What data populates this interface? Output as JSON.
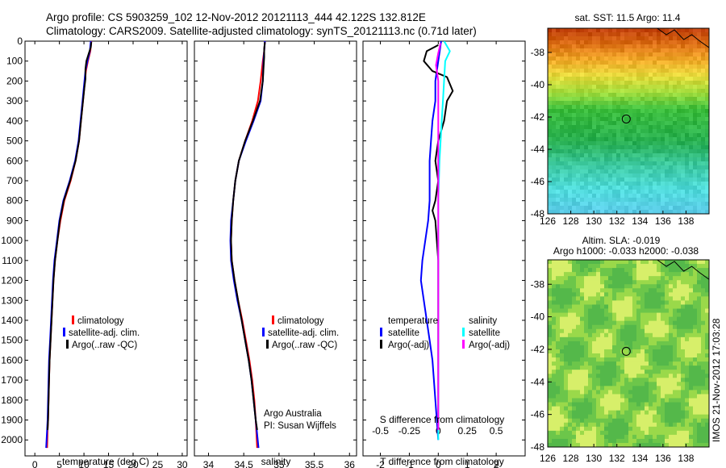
{
  "header": {
    "line1": "Argo profile: CS 5903259_102 12-Nov-2012 20121113_444 42.122S 132.812E",
    "line2": "Climatology: CARS2009. Satellite-adjusted climatology: synTS_20121113.nc (0.71d later)"
  },
  "colors": {
    "climatology": "#ff0000",
    "satellite": "#0000ff",
    "argo": "#000000",
    "sal_satellite": "#00ffff",
    "sal_argo": "#ff00ff"
  },
  "depth_ticks": [
    "0",
    "100",
    "200",
    "300",
    "400",
    "500",
    "600",
    "700",
    "800",
    "900",
    "1000",
    "1100",
    "1200",
    "1300",
    "1400",
    "1500",
    "1600",
    "1700",
    "1800",
    "1900",
    "2000"
  ],
  "panels": {
    "temp": {
      "xlabel": "temperature (deg C)",
      "xticks": [
        "0",
        "5",
        "10",
        "15",
        "20",
        "25",
        "30"
      ],
      "legend": [
        "climatology",
        "satellite-adj. clim.",
        "Argo(..raw -QC)"
      ]
    },
    "sal": {
      "xlabel": "salinity",
      "xticks": [
        "34",
        "34.5",
        "35",
        "35.5",
        "36"
      ],
      "legend": [
        "climatology",
        "satellite-adj. clim.",
        "Argo(..raw -QC)"
      ],
      "note1": "Argo Australia",
      "note2": "PI: Susan Wijffels"
    },
    "diff": {
      "xlabel": "T difference from climatology",
      "xticks": [
        "-2",
        "-1",
        "0",
        "1",
        "2"
      ],
      "top_label": "S difference from climatology",
      "top_ticks": [
        "-0.5",
        "-0.25",
        "0",
        "0.25",
        "0.5"
      ],
      "legend_t_title": "temperature",
      "legend_s_title": "salinity",
      "legend_items": [
        "satellite",
        "Argo(-adj)"
      ]
    }
  },
  "maps": {
    "sst_title": "sat. SST: 11.5  Argo: 11.4",
    "sla_title1": "Altim. SLA: -0.019",
    "sla_title2": "Argo h1000: -0.033 h2000: -0.038",
    "yticks": [
      "-38",
      "-40",
      "-42",
      "-44",
      "-46",
      "-48"
    ],
    "xticks": [
      "126",
      "128",
      "130",
      "132",
      "134",
      "136",
      "138"
    ],
    "footer": "IMOS 21-Nov-2012 17:03:28"
  },
  "chart_data": [
    {
      "type": "line",
      "title": "Argo profile: CS 5903259_102 12-Nov-2012 20121113_444 42.122S 132.812E",
      "xlabel": "temperature (deg C)",
      "ylabel": "",
      "xlim": [
        -2,
        31
      ],
      "ylim": [
        2080,
        0
      ],
      "series": [
        {
          "name": "climatology",
          "color": "#ff0000",
          "points": [
            [
              11.5,
              0
            ],
            [
              11.3,
              50
            ],
            [
              10.8,
              100
            ],
            [
              10.4,
              150
            ],
            [
              10.2,
              200
            ],
            [
              9.8,
              300
            ],
            [
              9.4,
              400
            ],
            [
              9.0,
              500
            ],
            [
              8.3,
              600
            ],
            [
              7.3,
              700
            ],
            [
              6.0,
              800
            ],
            [
              5.2,
              900
            ],
            [
              4.6,
              1000
            ],
            [
              4.1,
              1100
            ],
            [
              3.8,
              1200
            ],
            [
              3.6,
              1300
            ],
            [
              3.4,
              1400
            ],
            [
              3.2,
              1500
            ],
            [
              3.0,
              1600
            ],
            [
              2.9,
              1700
            ],
            [
              2.8,
              1800
            ],
            [
              2.7,
              1900
            ],
            [
              2.6,
              1950
            ],
            [
              2.5,
              2040
            ]
          ]
        },
        {
          "name": "satellite-adj. clim.",
          "color": "#0000ff",
          "points": [
            [
              11.4,
              0
            ],
            [
              11.2,
              50
            ],
            [
              10.7,
              100
            ],
            [
              10.3,
              150
            ],
            [
              10.1,
              200
            ],
            [
              9.7,
              300
            ],
            [
              9.3,
              400
            ],
            [
              8.9,
              500
            ],
            [
              8.2,
              600
            ],
            [
              7.1,
              700
            ],
            [
              5.8,
              800
            ],
            [
              5.0,
              900
            ],
            [
              4.5,
              1000
            ],
            [
              4.0,
              1100
            ],
            [
              3.7,
              1200
            ],
            [
              3.5,
              1300
            ],
            [
              3.3,
              1400
            ],
            [
              3.1,
              1500
            ],
            [
              2.9,
              1600
            ],
            [
              2.8,
              1700
            ],
            [
              2.7,
              1800
            ],
            [
              2.6,
              1900
            ],
            [
              2.5,
              1950
            ],
            [
              2.3,
              2040
            ]
          ]
        },
        {
          "name": "Argo(..raw -QC)",
          "color": "#000000",
          "points": [
            [
              11.5,
              5
            ],
            [
              11.4,
              30
            ],
            [
              11.0,
              60
            ],
            [
              10.5,
              100
            ],
            [
              10.3,
              140
            ],
            [
              10.3,
              190
            ],
            [
              10.1,
              230
            ],
            [
              9.8,
              300
            ],
            [
              9.4,
              400
            ],
            [
              9.0,
              500
            ],
            [
              8.3,
              600
            ],
            [
              7.2,
              700
            ],
            [
              5.9,
              800
            ],
            [
              5.1,
              900
            ],
            [
              4.6,
              1000
            ],
            [
              4.1,
              1100
            ],
            [
              3.8,
              1200
            ],
            [
              3.6,
              1300
            ],
            [
              3.4,
              1400
            ],
            [
              3.2,
              1500
            ],
            [
              3.0,
              1600
            ],
            [
              2.9,
              1700
            ],
            [
              2.8,
              1800
            ],
            [
              2.7,
              1900
            ],
            [
              2.6,
              1950
            ]
          ]
        }
      ]
    },
    {
      "type": "line",
      "xlabel": "salinity",
      "ylabel": "",
      "xlim": [
        33.8,
        36.1
      ],
      "ylim": [
        2080,
        0
      ],
      "series": [
        {
          "name": "climatology",
          "color": "#ff0000",
          "points": [
            [
              34.8,
              0
            ],
            [
              34.79,
              50
            ],
            [
              34.77,
              100
            ],
            [
              34.74,
              200
            ],
            [
              34.7,
              300
            ],
            [
              34.62,
              400
            ],
            [
              34.52,
              500
            ],
            [
              34.43,
              600
            ],
            [
              34.38,
              700
            ],
            [
              34.35,
              800
            ],
            [
              34.33,
              900
            ],
            [
              34.32,
              1000
            ],
            [
              34.33,
              1100
            ],
            [
              34.37,
              1200
            ],
            [
              34.42,
              1300
            ],
            [
              34.48,
              1400
            ],
            [
              34.53,
              1500
            ],
            [
              34.58,
              1600
            ],
            [
              34.62,
              1700
            ],
            [
              34.65,
              1800
            ],
            [
              34.67,
              1900
            ],
            [
              34.69,
              2040
            ]
          ]
        },
        {
          "name": "satellite-adj. clim.",
          "color": "#0000ff",
          "points": [
            [
              34.8,
              0
            ],
            [
              34.79,
              50
            ],
            [
              34.78,
              100
            ],
            [
              34.77,
              200
            ],
            [
              34.74,
              300
            ],
            [
              34.64,
              400
            ],
            [
              34.53,
              500
            ],
            [
              34.43,
              600
            ],
            [
              34.38,
              700
            ],
            [
              34.35,
              800
            ],
            [
              34.32,
              900
            ],
            [
              34.31,
              1000
            ],
            [
              34.32,
              1100
            ],
            [
              34.36,
              1200
            ],
            [
              34.41,
              1300
            ],
            [
              34.47,
              1400
            ],
            [
              34.52,
              1500
            ],
            [
              34.57,
              1600
            ],
            [
              34.61,
              1700
            ],
            [
              34.64,
              1800
            ],
            [
              34.67,
              1900
            ],
            [
              34.71,
              2040
            ]
          ]
        },
        {
          "name": "Argo(..raw -QC)",
          "color": "#000000",
          "points": [
            [
              34.8,
              5
            ],
            [
              34.79,
              40
            ],
            [
              34.79,
              80
            ],
            [
              34.78,
              140
            ],
            [
              34.77,
              200
            ],
            [
              34.73,
              300
            ],
            [
              34.63,
              400
            ],
            [
              34.52,
              500
            ],
            [
              34.43,
              600
            ],
            [
              34.38,
              700
            ],
            [
              34.35,
              800
            ],
            [
              34.33,
              900
            ],
            [
              34.32,
              1000
            ],
            [
              34.33,
              1100
            ],
            [
              34.37,
              1200
            ],
            [
              34.42,
              1300
            ],
            [
              34.47,
              1400
            ],
            [
              34.52,
              1500
            ],
            [
              34.57,
              1600
            ],
            [
              34.61,
              1700
            ],
            [
              34.64,
              1800
            ],
            [
              34.67,
              1900
            ],
            [
              34.69,
              1950
            ]
          ]
        }
      ]
    },
    {
      "type": "line",
      "xlabel": "T difference from climatology",
      "ylabel": "",
      "xlim": [
        -2.6,
        3.0
      ],
      "ylim": [
        2080,
        0
      ],
      "series": [
        {
          "name": "temperature satellite",
          "color": "#0000ff",
          "points": [
            [
              0.1,
              0
            ],
            [
              0.0,
              100
            ],
            [
              -0.1,
              200
            ],
            [
              -0.1,
              300
            ],
            [
              -0.2,
              400
            ],
            [
              -0.25,
              500
            ],
            [
              -0.3,
              600
            ],
            [
              -0.3,
              700
            ],
            [
              -0.3,
              800
            ],
            [
              -0.35,
              900
            ],
            [
              -0.45,
              1000
            ],
            [
              -0.55,
              1100
            ],
            [
              -0.6,
              1200
            ],
            [
              -0.5,
              1300
            ],
            [
              -0.4,
              1400
            ],
            [
              -0.3,
              1500
            ],
            [
              -0.2,
              1600
            ],
            [
              -0.15,
              1700
            ],
            [
              -0.1,
              1800
            ],
            [
              -0.05,
              1900
            ],
            [
              0.0,
              2000
            ]
          ]
        },
        {
          "name": "temperature Argo(-adj)",
          "color": "#000000",
          "points": [
            [
              0.0,
              20
            ],
            [
              -0.4,
              50
            ],
            [
              -0.5,
              100
            ],
            [
              -0.2,
              150
            ],
            [
              0.3,
              180
            ],
            [
              0.5,
              250
            ],
            [
              0.3,
              300
            ],
            [
              0.2,
              400
            ],
            [
              0.0,
              500
            ],
            [
              -0.1,
              600
            ],
            [
              0.0,
              700
            ],
            [
              -0.1,
              800
            ],
            [
              -0.2,
              850
            ],
            [
              -0.1,
              900
            ],
            [
              -0.05,
              1000
            ],
            [
              0.0,
              1100
            ],
            [
              0.0,
              1200
            ],
            [
              0.0,
              1400
            ],
            [
              0.0,
              1600
            ],
            [
              0.0,
              1800
            ],
            [
              0.0,
              1950
            ]
          ]
        }
      ]
    },
    {
      "type": "line",
      "xlabel": "S difference from climatology",
      "ylabel": "",
      "xlim": [
        -0.65,
        0.75
      ],
      "ylim": [
        2080,
        0
      ],
      "series": [
        {
          "name": "salinity satellite",
          "color": "#00ffff",
          "points": [
            [
              0.05,
              0
            ],
            [
              0.1,
              50
            ],
            [
              0.06,
              100
            ],
            [
              0.05,
              200
            ],
            [
              0.04,
              300
            ],
            [
              0.03,
              400
            ],
            [
              0.02,
              500
            ],
            [
              0.01,
              600
            ],
            [
              0.0,
              800
            ],
            [
              0.0,
              1000
            ],
            [
              0.0,
              1200
            ],
            [
              0.0,
              1400
            ],
            [
              0.0,
              1600
            ],
            [
              0.0,
              1800
            ],
            [
              0.0,
              2000
            ]
          ]
        },
        {
          "name": "salinity Argo(-adj)",
          "color": "#ff00ff",
          "points": [
            [
              0.02,
              10
            ],
            [
              0.0,
              60
            ],
            [
              -0.02,
              120
            ],
            [
              0.0,
              200
            ],
            [
              0.0,
              400
            ],
            [
              0.0,
              600
            ],
            [
              0.0,
              800
            ],
            [
              0.0,
              1000
            ],
            [
              0.0,
              1200
            ],
            [
              0.0,
              1400
            ],
            [
              0.0,
              1600
            ],
            [
              0.0,
              1800
            ],
            [
              0.0,
              1950
            ]
          ]
        }
      ]
    },
    {
      "type": "heatmap",
      "title": "sat. SST: 11.5  Argo: 11.4",
      "xlim": [
        126,
        140
      ],
      "ylim": [
        -48,
        -36.5
      ],
      "note": "SST field: warm (red/orange) in north around -37, green near -42 to -45, cyan near -46 to -48; Argo position marker at 132.812E, 42.122S"
    },
    {
      "type": "heatmap",
      "title": "Altim. SLA: -0.019",
      "xlim": [
        126,
        140
      ],
      "ylim": [
        -48,
        -36.5
      ],
      "note": "SLA field in light/dark green patches; Argo position marker at 132.812E, 42.122S"
    }
  ]
}
